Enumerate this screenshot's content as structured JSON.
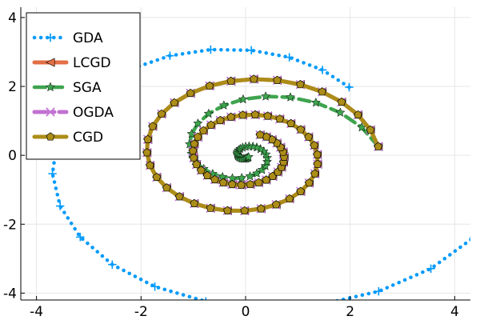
{
  "chart_data": {
    "type": "line",
    "title": "",
    "xlabel": "",
    "ylabel": "",
    "xlim": [
      -4.3,
      4.3
    ],
    "ylim": [
      -4.2,
      4.3
    ],
    "x_ticks": [
      -4,
      -2,
      0,
      2,
      4
    ],
    "y_ticks": [
      -4,
      -2,
      0,
      2,
      4
    ],
    "x_tick_labels": [
      "-4",
      "-2",
      "0",
      "2",
      "4"
    ],
    "y_tick_labels": [
      "-4",
      "-2",
      "0",
      "2",
      "4"
    ],
    "grid": true,
    "legend_position": "top-left",
    "series": [
      {
        "name": "GDA",
        "color": "#009AFA",
        "line_style": "dotted",
        "marker": "plus",
        "spiral": {
          "r0": 2.8,
          "rate": 0.115,
          "theta0": 0.785,
          "theta_end": 7.0,
          "step": 0.25,
          "center": [
            0,
            0
          ]
        }
      },
      {
        "name": "LCGD",
        "color": "#E26F46",
        "line_style": "solid",
        "marker": "triangle-left",
        "spiral": {
          "r0": 2.55,
          "rate": -0.1,
          "theta0": 0.1,
          "theta_end": 13.8,
          "step": 0.2,
          "center": [
            0,
            0
          ]
        }
      },
      {
        "name": "SGA",
        "color": "#3EA44E",
        "line_style": "dashed",
        "marker": "star",
        "spiral": {
          "r0": 2.55,
          "rate": -0.3,
          "theta0": 0.1,
          "theta_end": 12.0,
          "step": 0.25,
          "center": [
            0,
            0
          ]
        }
      },
      {
        "name": "OGDA",
        "color": "#C271D2",
        "line_style": "dashdot",
        "marker": "x",
        "spiral": {
          "r0": 2.55,
          "rate": -0.1,
          "theta0": 0.1,
          "theta_end": 13.8,
          "step": 0.2,
          "center": [
            0,
            0
          ]
        }
      },
      {
        "name": "CGD",
        "color": "#AC8D18",
        "line_style": "solid",
        "marker": "pentagon",
        "spiral": {
          "r0": 2.55,
          "rate": -0.1,
          "theta0": 0.1,
          "theta_end": 13.8,
          "step": 0.2,
          "center": [
            0,
            0
          ]
        }
      }
    ]
  }
}
